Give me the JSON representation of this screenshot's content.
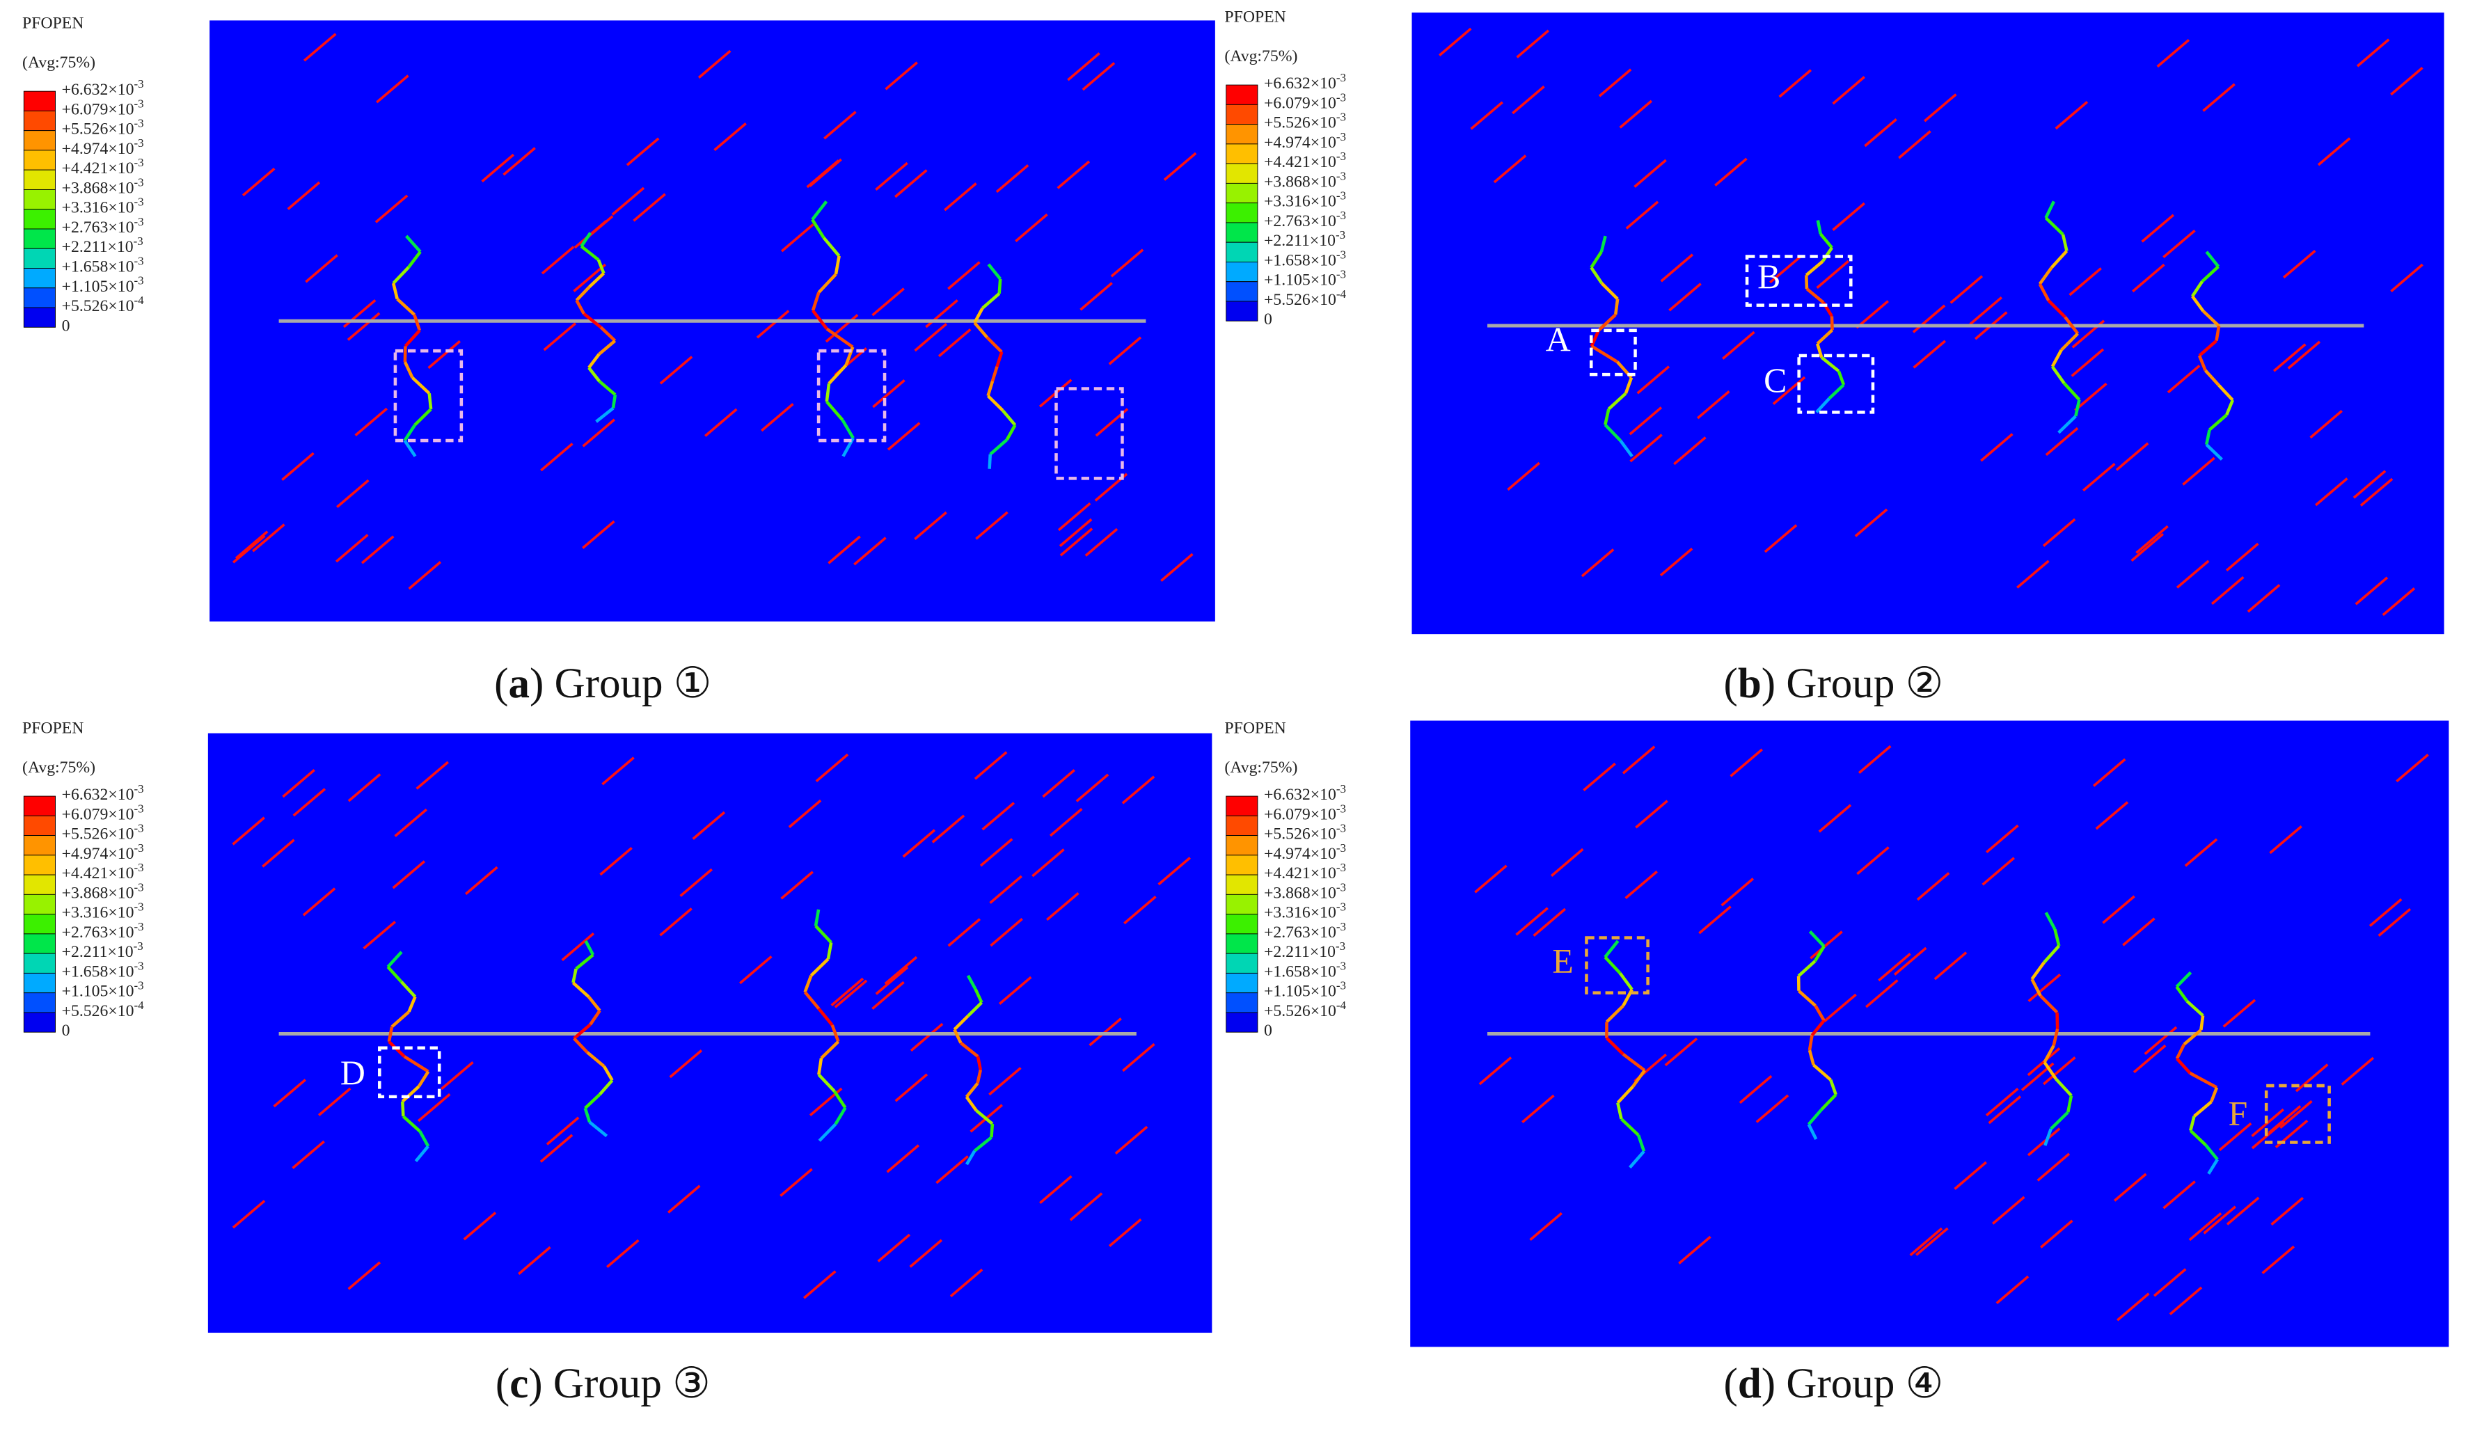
{
  "legend_colors": [
    "#ff0000",
    "#ff4a00",
    "#ff9400",
    "#ffbf00",
    "#e2e600",
    "#98f200",
    "#3cf000",
    "#00e64a",
    "#00d6b4",
    "#00aaff",
    "#0050ff",
    "#0000f0"
  ],
  "panels": [
    {
      "legend": {
        "title": "PFOPEN",
        "avg": "(Avg:75%)",
        "labels": [
          {
            "base": "+6.632×10",
            "exp": "-3"
          },
          {
            "base": "+6.079×10",
            "exp": "-3"
          },
          {
            "base": "+5.526×10",
            "exp": "-3"
          },
          {
            "base": "+4.974×10",
            "exp": "-3"
          },
          {
            "base": "+4.421×10",
            "exp": "-3"
          },
          {
            "base": "+3.868×10",
            "exp": "-3"
          },
          {
            "base": "+3.316×10",
            "exp": "-3"
          },
          {
            "base": "+2.763×10",
            "exp": "-3"
          },
          {
            "base": "+2.211×10",
            "exp": "-3"
          },
          {
            "base": "+1.658×10",
            "exp": "-3"
          },
          {
            "base": "+1.105×10",
            "exp": "-3"
          },
          {
            "base": "+5.526×10",
            "exp": "-4"
          },
          {
            "base": "0"
          }
        ]
      },
      "markers": [],
      "caption": {
        "prefix": "(",
        "letter": "a",
        "suffix": ") Group ①"
      }
    },
    {
      "legend": {
        "title": "PFOPEN",
        "avg": "(Avg:75%)",
        "labels": [
          {
            "base": "+6.632×10",
            "exp": "-3"
          },
          {
            "base": "+6.079×10",
            "exp": "-3"
          },
          {
            "base": "+5.526×10",
            "exp": "-3"
          },
          {
            "base": "+4.974×10",
            "exp": "-3"
          },
          {
            "base": "+4.421×10",
            "exp": "-3"
          },
          {
            "base": "+3.868×10",
            "exp": "-3"
          },
          {
            "base": "+3.316×10",
            "exp": "-3"
          },
          {
            "base": "+2.763×10",
            "exp": "-3"
          },
          {
            "base": "+2.211×10",
            "exp": "-3"
          },
          {
            "base": "+1.658×10",
            "exp": "-3"
          },
          {
            "base": "+1.105×10",
            "exp": "-3"
          },
          {
            "base": "+5.526×10",
            "exp": "-4"
          },
          {
            "base": "0"
          }
        ]
      },
      "markers": [
        "A",
        "B",
        "C"
      ],
      "caption": {
        "prefix": "(",
        "letter": "b",
        "suffix": ") Group ②"
      }
    },
    {
      "legend": {
        "title": "PFOPEN",
        "avg": "(Avg:75%)",
        "labels": [
          {
            "base": "+6.632×10",
            "exp": "-3"
          },
          {
            "base": "+6.079×10",
            "exp": "-3"
          },
          {
            "base": "+5.526×10",
            "exp": "-3"
          },
          {
            "base": "+4.974×10",
            "exp": "-3"
          },
          {
            "base": "+4.421×10",
            "exp": "-3"
          },
          {
            "base": "+3.868×10",
            "exp": "-3"
          },
          {
            "base": "+3.316×10",
            "exp": "-3"
          },
          {
            "base": "+2.763×10",
            "exp": "-3"
          },
          {
            "base": "+2.211×10",
            "exp": "-3"
          },
          {
            "base": "+1.658×10",
            "exp": "-3"
          },
          {
            "base": "+1.105×10",
            "exp": "-3"
          },
          {
            "base": "+5.526×10",
            "exp": "-4"
          },
          {
            "base": "0"
          }
        ]
      },
      "markers": [
        "D"
      ],
      "caption": {
        "prefix": "(",
        "letter": "c",
        "suffix": ") Group ③"
      }
    },
    {
      "legend": {
        "title": "PFOPEN",
        "avg": "(Avg:75%)",
        "labels": [
          {
            "base": "+6.632×10",
            "exp": "-3"
          },
          {
            "base": "+6.079×10",
            "exp": "-3"
          },
          {
            "base": "+5.526×10",
            "exp": "-3"
          },
          {
            "base": "+4.974×10",
            "exp": "-3"
          },
          {
            "base": "+4.421×10",
            "exp": "-3"
          },
          {
            "base": "+3.868×10",
            "exp": "-3"
          },
          {
            "base": "+3.316×10",
            "exp": "-3"
          },
          {
            "base": "+2.763×10",
            "exp": "-3"
          },
          {
            "base": "+2.211×10",
            "exp": "-3"
          },
          {
            "base": "+1.658×10",
            "exp": "-3"
          },
          {
            "base": "+1.105×10",
            "exp": "-3"
          },
          {
            "base": "+5.526×10",
            "exp": "-4"
          },
          {
            "base": "0"
          }
        ]
      },
      "markers": [
        "E",
        "F"
      ],
      "caption": {
        "prefix": "(",
        "letter": "d",
        "suffix": ") Group ④"
      }
    }
  ]
}
